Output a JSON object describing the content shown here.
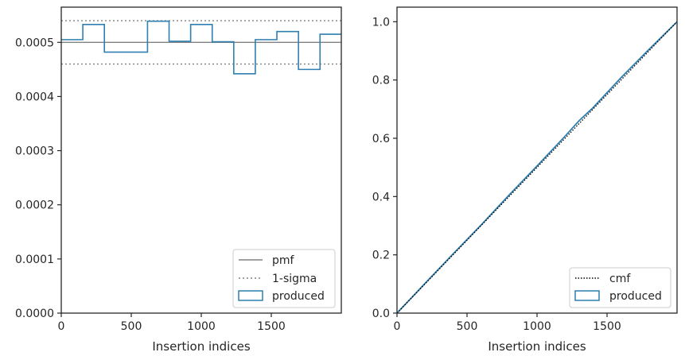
{
  "colors": {
    "produced": "#2f7fb0",
    "pmf": "#808080",
    "sigma": "#808080",
    "cmf": "#000000",
    "frame": "#262626"
  },
  "chart_data": [
    {
      "type": "step",
      "title": "",
      "xlabel": "Insertion indices",
      "ylabel": "",
      "xlim": [
        0,
        2000
      ],
      "ylim": [
        0,
        0.000565
      ],
      "xticks": [
        0,
        500,
        1000,
        1500
      ],
      "xtick_labels": [
        "0",
        "500",
        "1000",
        "1500"
      ],
      "yticks": [
        0,
        0.0001,
        0.0002,
        0.0003,
        0.0004,
        0.0005
      ],
      "ytick_labels": [
        "0.0000",
        "0.0001",
        "0.0002",
        "0.0003",
        "0.0004",
        "0.0005"
      ],
      "legend_position": "bottom-right",
      "legend": [
        "pmf",
        "1-sigma",
        "produced"
      ],
      "pmf": 0.0005,
      "sigma_band": [
        0.00046,
        0.00054
      ],
      "produced": {
        "bin_edges": [
          0,
          154,
          308,
          462,
          616,
          770,
          924,
          1078,
          1232,
          1386,
          1540,
          1694,
          1848,
          2000
        ],
        "values": [
          0.000505,
          0.000533,
          0.000482,
          0.000482,
          0.000539,
          0.000502,
          0.000533,
          0.000501,
          0.000442,
          0.000505,
          0.00052,
          0.00045,
          0.000515
        ]
      }
    },
    {
      "type": "line",
      "title": "",
      "xlabel": "Insertion indices",
      "ylabel": "",
      "xlim": [
        0,
        2000
      ],
      "ylim": [
        0,
        1.05
      ],
      "xticks": [
        0,
        500,
        1000,
        1500
      ],
      "xtick_labels": [
        "0",
        "500",
        "1000",
        "1500"
      ],
      "yticks": [
        0,
        0.2,
        0.4,
        0.6,
        0.8,
        1.0
      ],
      "ytick_labels": [
        "0.0",
        "0.2",
        "0.4",
        "0.6",
        "0.8",
        "1.0"
      ],
      "legend_position": "bottom-right",
      "legend": [
        "cmf",
        "produced"
      ],
      "cmf": {
        "x": [
          0,
          2000
        ],
        "y": [
          0,
          1.0
        ]
      },
      "produced": {
        "x": [
          0,
          200,
          400,
          600,
          800,
          1000,
          1200,
          1300,
          1400,
          1600,
          1800,
          2000
        ],
        "y": [
          0,
          0.102,
          0.203,
          0.302,
          0.405,
          0.505,
          0.607,
          0.66,
          0.705,
          0.808,
          0.905,
          1.0
        ]
      }
    }
  ]
}
